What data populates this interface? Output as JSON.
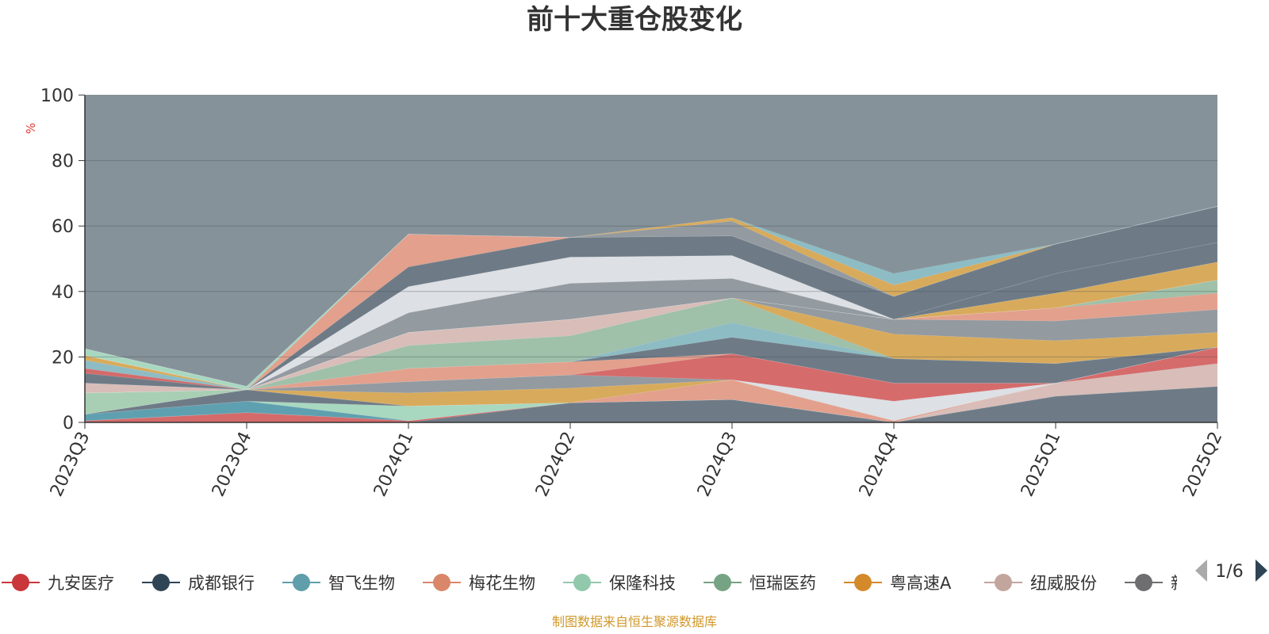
{
  "chart_data": {
    "type": "area",
    "stacked": true,
    "title": "前十大重仓股变化",
    "ylabel": "%",
    "ylim": [
      0,
      100
    ],
    "yticks": [
      "0",
      "20",
      "40",
      "60",
      "80",
      "100"
    ],
    "categories": [
      "2023Q3",
      "2023Q4",
      "2024Q1",
      "2024Q2",
      "2024Q3",
      "2024Q4",
      "2025Q1",
      "2025Q2"
    ],
    "series": [
      {
        "name": "",
        "color": "#6e7b87",
        "values": [
          0,
          0,
          0,
          6,
          7,
          0,
          8,
          11
        ]
      },
      {
        "name": "九安医疗",
        "color": "#d46a6a",
        "values": [
          0.5,
          3,
          0.5,
          0,
          0,
          0,
          0,
          0
        ]
      },
      {
        "name": "纽威股份",
        "color": "#d8bdb8",
        "values": [
          0,
          0,
          0,
          0,
          0,
          0,
          4,
          7
        ]
      },
      {
        "name": "",
        "color": "#d66b6b",
        "values": [
          0,
          0,
          0,
          0,
          0,
          0,
          0,
          5
        ]
      },
      {
        "name": "智飞生物",
        "color": "#5fa0b0",
        "values": [
          2,
          3.5,
          0,
          0,
          0,
          0,
          0,
          0
        ]
      },
      {
        "name": "保隆科技",
        "color": "#a8d8c0",
        "values": [
          0,
          0,
          4.5,
          0,
          0,
          0,
          0,
          0
        ]
      },
      {
        "name": "梅花生物",
        "color": "#e3a08c",
        "values": [
          0,
          0,
          0,
          0,
          6,
          0.5,
          0,
          0
        ]
      },
      {
        "name": "",
        "color": "#6e7b87",
        "values": [
          0,
          3.5,
          0,
          0,
          0,
          0,
          0,
          0
        ]
      },
      {
        "name": "",
        "color": "#dde0e4",
        "values": [
          0,
          0,
          0,
          0,
          0,
          6,
          0,
          0
        ]
      },
      {
        "name": "粤高速A",
        "color": "#d8ab5c",
        "values": [
          0,
          0,
          4,
          4.5,
          0,
          0,
          0,
          0
        ]
      },
      {
        "name": "",
        "color": "#939aa0",
        "values": [
          0,
          0,
          3.5,
          4,
          0,
          0,
          0,
          0
        ]
      },
      {
        "name": "",
        "color": "#d66b6b",
        "values": [
          0,
          0,
          0,
          0,
          8,
          5.5,
          0,
          0
        ]
      },
      {
        "name": "恒瑞医药",
        "color": "#a8cfb3",
        "values": [
          6.5,
          0,
          0,
          0,
          0,
          0,
          0,
          0
        ]
      },
      {
        "name": "",
        "color": "#e3a08c",
        "values": [
          0,
          0,
          4,
          4,
          0,
          0,
          0,
          0
        ]
      },
      {
        "name": "",
        "color": "#6e7b87",
        "values": [
          0,
          0,
          0,
          0,
          5,
          7.5,
          6,
          0
        ]
      },
      {
        "name": "",
        "color": "#8dbcc4",
        "values": [
          0,
          0,
          0,
          0,
          4.5,
          0,
          0,
          0
        ]
      },
      {
        "name": "",
        "color": "#9fc0a9",
        "values": [
          0,
          0,
          7,
          8,
          7.5,
          0,
          0,
          0
        ]
      },
      {
        "name": "",
        "color": "#d8ab5c",
        "values": [
          0,
          0,
          0,
          0,
          0,
          7.5,
          7,
          4.5
        ]
      },
      {
        "name": "",
        "color": "#939aa0",
        "values": [
          0,
          0,
          0,
          0,
          0,
          4.5,
          6,
          7
        ]
      },
      {
        "name": "",
        "color": "#d8bdb8",
        "values": [
          3,
          0,
          4,
          5,
          0,
          0,
          0,
          0
        ]
      },
      {
        "name": "",
        "color": "#e3a08c",
        "values": [
          0,
          0,
          0,
          0,
          0,
          0,
          4,
          5
        ]
      },
      {
        "name": "",
        "color": "#9fc0a9",
        "values": [
          0,
          0,
          0,
          0,
          0,
          0,
          0,
          4
        ]
      },
      {
        "name": "成都银行",
        "color": "#6e7b87",
        "values": [
          3,
          0,
          0,
          0,
          0,
          0,
          0,
          0
        ]
      },
      {
        "name": "",
        "color": "#d46a6a",
        "values": [
          1.5,
          0,
          0,
          0,
          0,
          0,
          0,
          0
        ]
      },
      {
        "name": "",
        "color": "#8dbcc4",
        "values": [
          2.5,
          0,
          0,
          0,
          0,
          0,
          0,
          0
        ]
      },
      {
        "name": "",
        "color": "#d8ab5c",
        "values": [
          1.5,
          0,
          0,
          0,
          0,
          0,
          0,
          0
        ]
      },
      {
        "name": "",
        "color": "#d8ab5c",
        "values": [
          0,
          0,
          0,
          0,
          0,
          0,
          4.5,
          5.5
        ]
      },
      {
        "name": "",
        "color": "#939aa0",
        "values": [
          0,
          0,
          6,
          11,
          6,
          0,
          0,
          0
        ]
      },
      {
        "name": "",
        "color": "#6e7b87",
        "values": [
          0,
          0,
          0,
          0,
          0,
          0,
          6,
          6
        ]
      },
      {
        "name": "",
        "color": "#dde0e4",
        "values": [
          0,
          0,
          8,
          8,
          7,
          0,
          0,
          0
        ]
      },
      {
        "name": "",
        "color": "#6e7b87",
        "values": [
          0,
          0,
          6,
          6,
          6,
          7,
          9,
          11
        ]
      },
      {
        "name": "",
        "color": "#e3a08c",
        "values": [
          0,
          0,
          10,
          0,
          0,
          0,
          0,
          0
        ]
      },
      {
        "name": "",
        "color": "#a8d8c0",
        "values": [
          2,
          1,
          0,
          0,
          0,
          0,
          0,
          0
        ]
      },
      {
        "name": "",
        "color": "#939aa0",
        "values": [
          0,
          0,
          0,
          0,
          4.5,
          0,
          0,
          0
        ]
      },
      {
        "name": "",
        "color": "#d8ab5c",
        "values": [
          0,
          0,
          0,
          0,
          1,
          3.5,
          0,
          0
        ]
      },
      {
        "name": "",
        "color": "#8dbcc4",
        "values": [
          0,
          0,
          0,
          0,
          0,
          3.5,
          0,
          0
        ]
      }
    ],
    "background_area_color": "#869299"
  },
  "legend": {
    "items": [
      {
        "label": "九安医疗",
        "color": "#c9373a"
      },
      {
        "label": "成都银行",
        "color": "#2f4455"
      },
      {
        "label": "智飞生物",
        "color": "#5f9eaa"
      },
      {
        "label": "梅花生物",
        "color": "#d9866a"
      },
      {
        "label": "保隆科技",
        "color": "#92c8ab"
      },
      {
        "label": "恒瑞医药",
        "color": "#76a384"
      },
      {
        "label": "粤高速A",
        "color": "#d4892b"
      },
      {
        "label": "纽威股份",
        "color": "#c2a59d"
      },
      {
        "label": "新",
        "color": "#6e6e70"
      }
    ],
    "page": "1/6"
  },
  "source": "制图数据来自恒生聚源数据库"
}
